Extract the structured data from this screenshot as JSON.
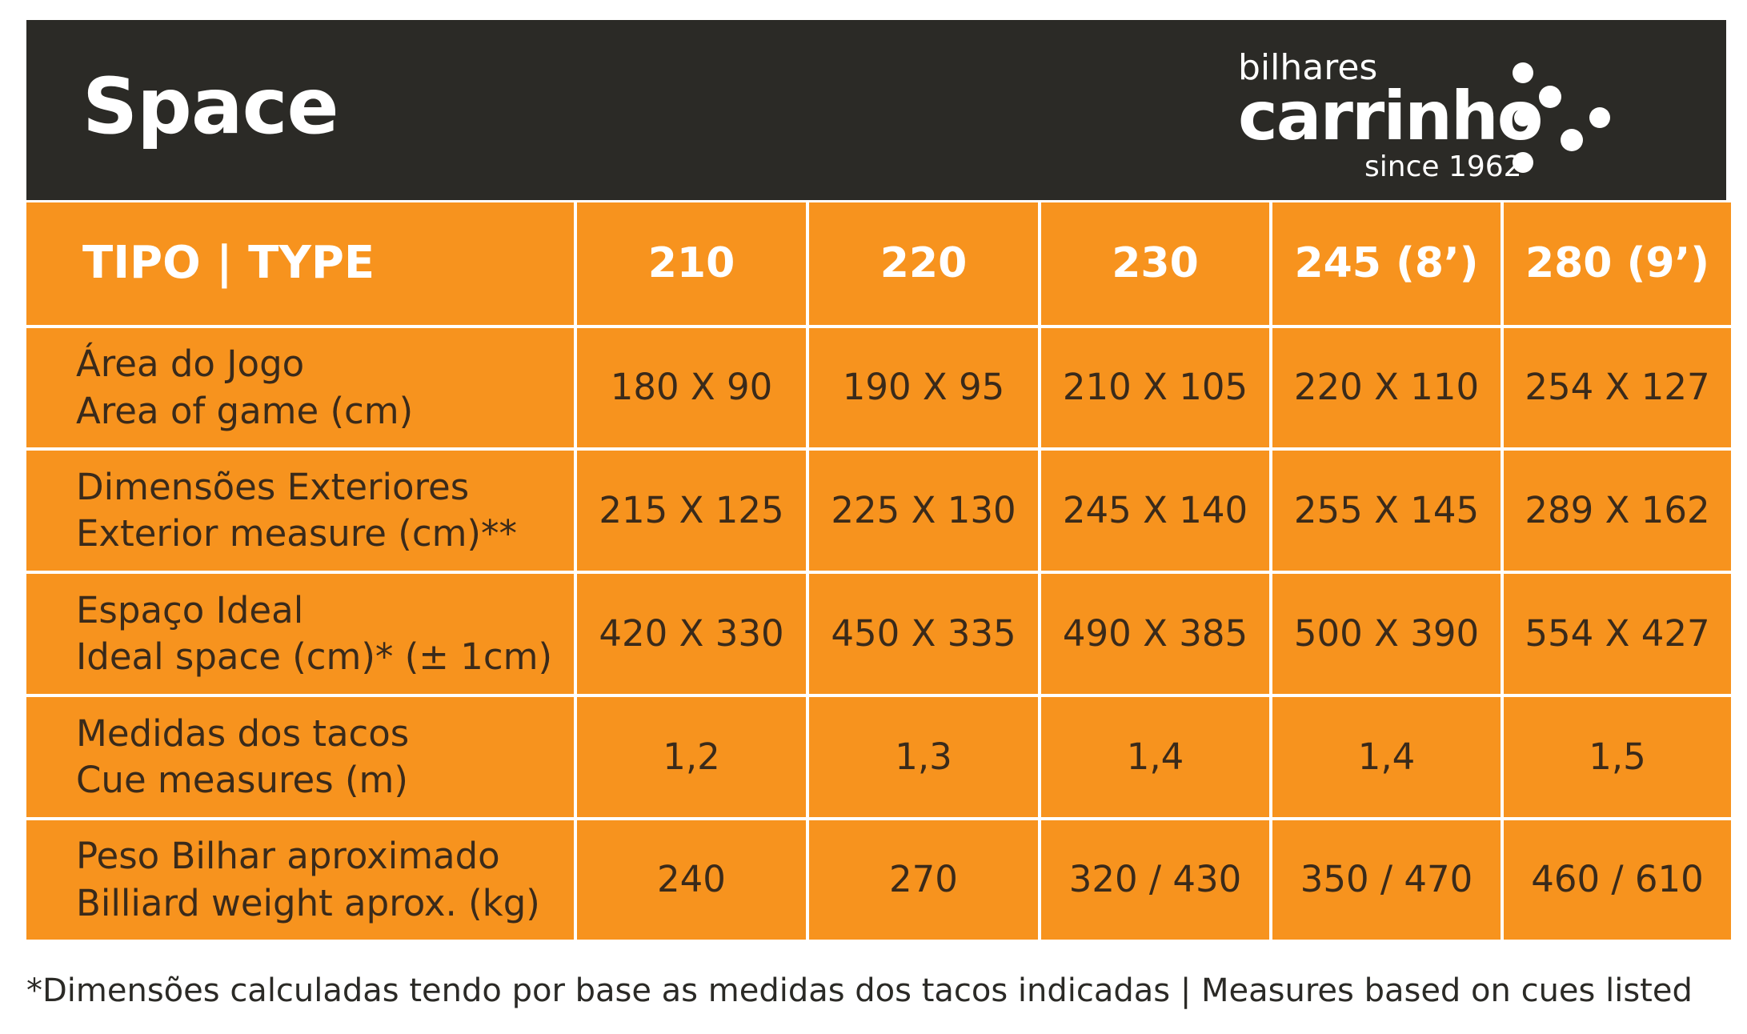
{
  "header": {
    "title": "Space",
    "logo": {
      "top": "bilhares",
      "main": "carrinho",
      "bottom": "since 1962"
    }
  },
  "table": {
    "header_label": "TIPO | TYPE",
    "columns": [
      "210",
      "220",
      "230",
      "245 (8’)",
      "280 (9’)"
    ],
    "rows": [
      {
        "label_pt": "Área do Jogo",
        "label_en": "Area of game (cm)",
        "values": [
          "180 X 90",
          "190 X 95",
          "210 X 105",
          "220 X 110",
          "254 X 127"
        ]
      },
      {
        "label_pt": "Dimensões Exteriores",
        "label_en": "Exterior measure (cm)**",
        "values": [
          "215 X 125",
          "225 X 130",
          "245 X 140",
          "255 X 145",
          "289 X 162"
        ]
      },
      {
        "label_pt": "Espaço Ideal",
        "label_en": "Ideal space (cm)* (± 1cm)",
        "values": [
          "420 X 330",
          "450 X 335",
          "490 X 385",
          "500 X 390",
          "554 X 427"
        ]
      },
      {
        "label_pt": "Medidas dos tacos",
        "label_en": "Cue measures (m)",
        "values": [
          "1,2",
          "1,3",
          "1,4",
          "1,4",
          "1,5"
        ]
      },
      {
        "label_pt": "Peso Bilhar aproximado",
        "label_en": "Billiard weight aprox. (kg)",
        "values": [
          "240",
          "270",
          "320 / 430",
          "350 / 470",
          "460 / 610"
        ]
      }
    ]
  },
  "footnote": "*Dimensões calculadas tendo por base as medidas dos tacos indicadas | Measures based on cues listed",
  "colors": {
    "header_bg": "#2b2a26",
    "cell_bg": "#f7931e",
    "text_dark": "#3a2a1a",
    "text_light": "#ffffff"
  }
}
